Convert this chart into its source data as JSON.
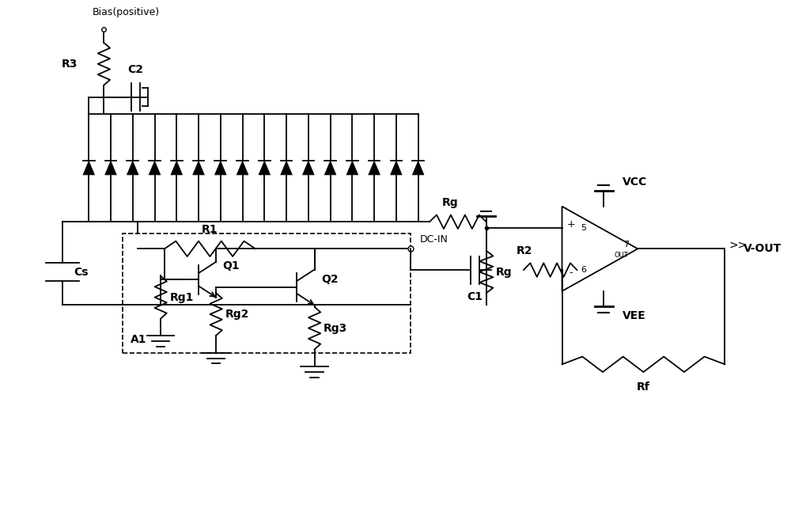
{
  "bg_color": "#ffffff",
  "line_color": "#000000",
  "figsize": [
    10.0,
    6.57
  ],
  "dpi": 100,
  "labels": {
    "bias": "Bias(positive)",
    "R3": "R3",
    "C2": "C2",
    "Cs": "Cs",
    "R1": "R1",
    "R2": "R2",
    "Rg": "Rg",
    "Rg1": "Rg1",
    "Rg2": "Rg2",
    "Rg3": "Rg3",
    "Q1": "Q1",
    "Q2": "Q2",
    "C1": "C1",
    "A1": "A1",
    "VCC": "VCC",
    "VEE": "VEE",
    "Rf": "Rf",
    "VOUT": "V-OUT",
    "DCIN": "DC-IN"
  }
}
